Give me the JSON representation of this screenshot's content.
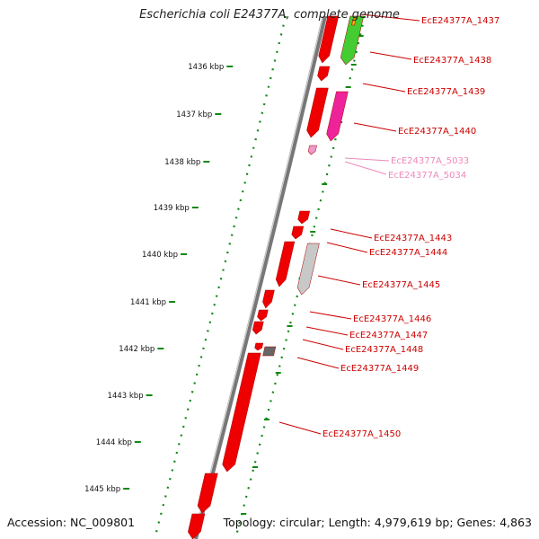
{
  "title": "Escherichia coli E24377A, complete genome",
  "footer": {
    "accession": "Accession: NC_009801",
    "summary": "Topology: circular; Length: 4,979,619 bp; Genes: 4,863"
  },
  "colors": {
    "gene": "#ee0000",
    "gene_label": "#cc0000",
    "pseudo_label": "#ee88bb",
    "backbone": "#777777",
    "tick": "#118811"
  },
  "ticks": [
    {
      "label": "1436 kbp"
    },
    {
      "label": "1437 kbp"
    },
    {
      "label": "1438 kbp"
    },
    {
      "label": "1439 kbp"
    },
    {
      "label": "1440 kbp"
    },
    {
      "label": "1441 kbp"
    },
    {
      "label": "1442 kbp"
    },
    {
      "label": "1443 kbp"
    },
    {
      "label": "1444 kbp"
    },
    {
      "label": "1445 kbp"
    }
  ],
  "genes": [
    {
      "label": "EcE24377A_1437",
      "kind": "cds"
    },
    {
      "label": "EcE24377A_1438",
      "kind": "cds"
    },
    {
      "label": "EcE24377A_1439",
      "kind": "cds"
    },
    {
      "label": "EcE24377A_1440",
      "kind": "cds"
    },
    {
      "label": "EcE24377A_5033",
      "kind": "pseudo"
    },
    {
      "label": "EcE24377A_5034",
      "kind": "pseudo"
    },
    {
      "label": "EcE24377A_1443",
      "kind": "cds"
    },
    {
      "label": "EcE24377A_1444",
      "kind": "cds"
    },
    {
      "label": "EcE24377A_1445",
      "kind": "cds"
    },
    {
      "label": "EcE24377A_1446",
      "kind": "cds"
    },
    {
      "label": "EcE24377A_1447",
      "kind": "cds"
    },
    {
      "label": "EcE24377A_1448",
      "kind": "cds"
    },
    {
      "label": "EcE24377A_1449",
      "kind": "cds"
    },
    {
      "label": "EcE24377A_1450",
      "kind": "cds"
    }
  ]
}
